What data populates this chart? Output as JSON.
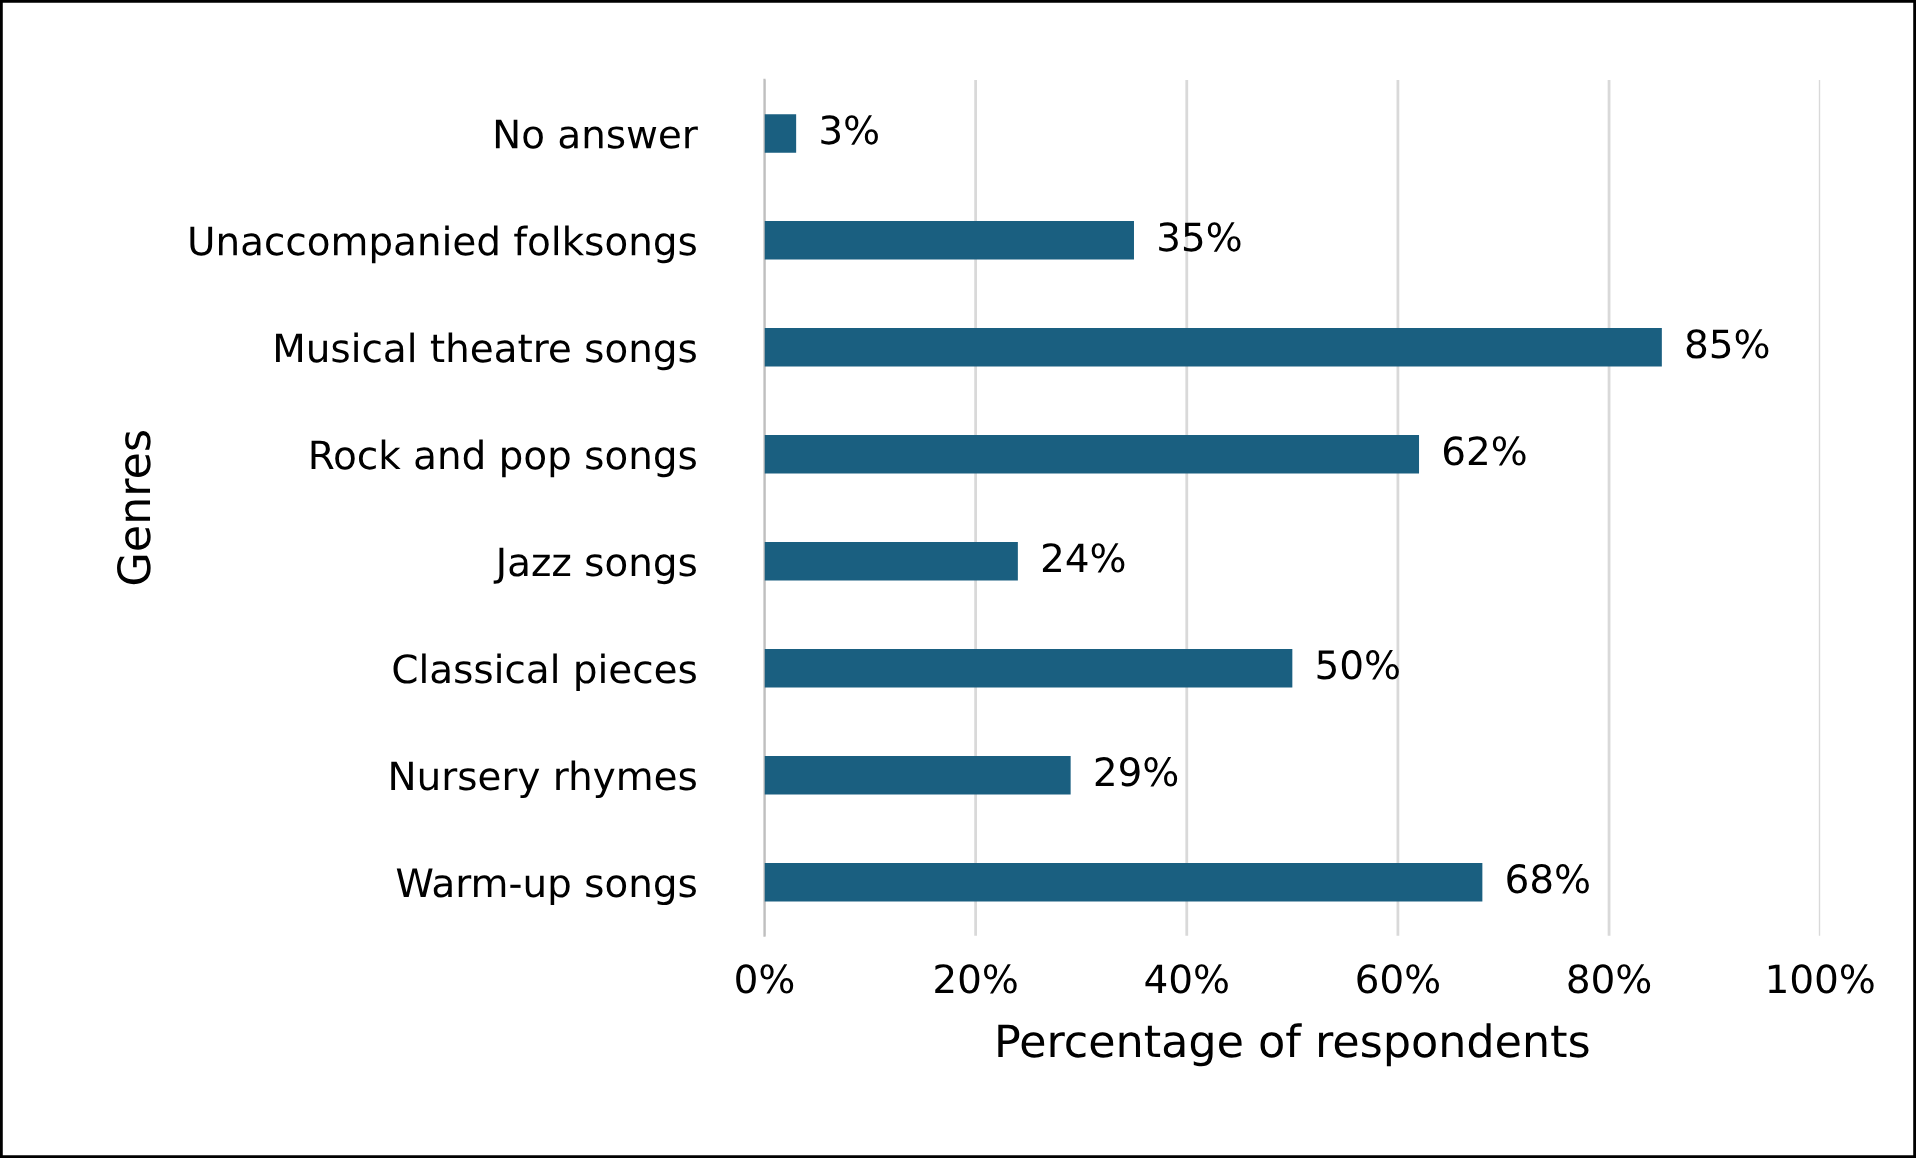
{
  "chart_data": {
    "type": "bar",
    "orientation": "horizontal",
    "xlabel": "Percentage of respondents",
    "ylabel": "Genres",
    "categories": [
      "No answer",
      "Unaccompanied folksongs",
      "Musical theatre songs",
      "Rock and pop songs",
      "Jazz songs",
      "Classical pieces",
      "Nursery rhymes",
      "Warm-up songs"
    ],
    "values": [
      3,
      35,
      85,
      62,
      24,
      50,
      29,
      68
    ],
    "value_labels": [
      "3%",
      "35%",
      "85%",
      "62%",
      "24%",
      "50%",
      "29%",
      "68%"
    ],
    "color": "#1a5f80",
    "xlim": [
      0,
      100
    ],
    "xticks": [
      {
        "value": 0,
        "label": "0%"
      },
      {
        "value": 20,
        "label": "20%"
      },
      {
        "value": 40,
        "label": "40%"
      },
      {
        "value": 60,
        "label": "60%"
      },
      {
        "value": 80,
        "label": "80%"
      },
      {
        "value": 100,
        "label": "100%"
      }
    ],
    "grid": "x",
    "legend": false
  }
}
